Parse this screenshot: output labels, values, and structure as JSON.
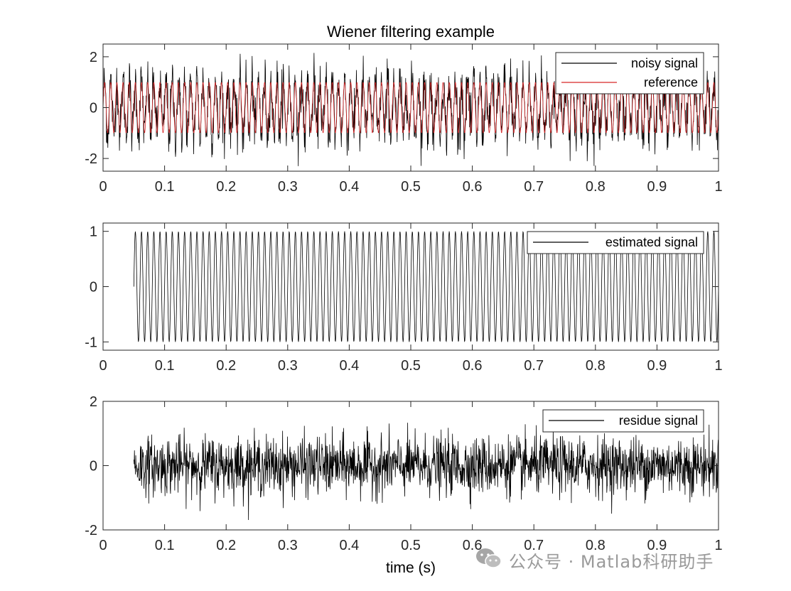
{
  "chart_data": [
    {
      "type": "line",
      "title": "Wiener filtering example",
      "xlabel": "",
      "ylabel": "",
      "xlim": [
        0,
        1
      ],
      "ylim": [
        -2.5,
        2.5
      ],
      "xticks": [
        0,
        0.1,
        0.2,
        0.3,
        0.4,
        0.5,
        0.6,
        0.7,
        0.8,
        0.9,
        1
      ],
      "xtick_labels": [
        "0",
        "0.1",
        "0.2",
        "0.3",
        "0.4",
        "0.5",
        "0.6",
        "0.7",
        "0.8",
        "0.9",
        "1"
      ],
      "yticks": [
        -2,
        0,
        2
      ],
      "ytick_labels": [
        "-2",
        "0",
        "2"
      ],
      "legend_position": "top-right",
      "series": [
        {
          "name": "noisy signal",
          "color": "#000000",
          "kind": "sine_plus_noise",
          "frequency_hz": 100,
          "amplitude": 1,
          "noise_std": 0.5,
          "t_start": 0,
          "t_end": 1
        },
        {
          "name": "reference",
          "color": "#d62728",
          "kind": "sine",
          "frequency_hz": 100,
          "amplitude": 1,
          "t_start": 0,
          "t_end": 1
        }
      ]
    },
    {
      "type": "line",
      "title": "",
      "xlabel": "",
      "ylabel": "",
      "xlim": [
        0,
        1
      ],
      "ylim": [
        -1.15,
        1.15
      ],
      "xticks": [
        0,
        0.1,
        0.2,
        0.3,
        0.4,
        0.5,
        0.6,
        0.7,
        0.8,
        0.9,
        1
      ],
      "xtick_labels": [
        "0",
        "0.1",
        "0.2",
        "0.3",
        "0.4",
        "0.5",
        "0.6",
        "0.7",
        "0.8",
        "0.9",
        "1"
      ],
      "yticks": [
        -1,
        0,
        1
      ],
      "ytick_labels": [
        "-1",
        "0",
        "1"
      ],
      "legend_position": "top-right",
      "series": [
        {
          "name": "estimated signal",
          "color": "#000000",
          "kind": "sine",
          "frequency_hz": 100,
          "amplitude": 1,
          "t_start": 0.05,
          "t_end": 1
        }
      ]
    },
    {
      "type": "line",
      "title": "",
      "xlabel": "time (s)",
      "ylabel": "",
      "xlim": [
        0,
        1
      ],
      "ylim": [
        -2,
        2
      ],
      "xticks": [
        0,
        0.1,
        0.2,
        0.3,
        0.4,
        0.5,
        0.6,
        0.7,
        0.8,
        0.9,
        1
      ],
      "xtick_labels": [
        "0",
        "0.1",
        "0.2",
        "0.3",
        "0.4",
        "0.5",
        "0.6",
        "0.7",
        "0.8",
        "0.9",
        "1"
      ],
      "yticks": [
        -2,
        0,
        2
      ],
      "ytick_labels": [
        "-2",
        "0",
        "2"
      ],
      "legend_position": "top-right",
      "series": [
        {
          "name": "residue signal",
          "color": "#000000",
          "kind": "noise",
          "noise_std": 0.45,
          "t_start": 0.05,
          "t_end": 1
        }
      ]
    }
  ],
  "watermark": {
    "text": "公众号 · Matlab科研助手",
    "icon": "wechat-icon"
  }
}
